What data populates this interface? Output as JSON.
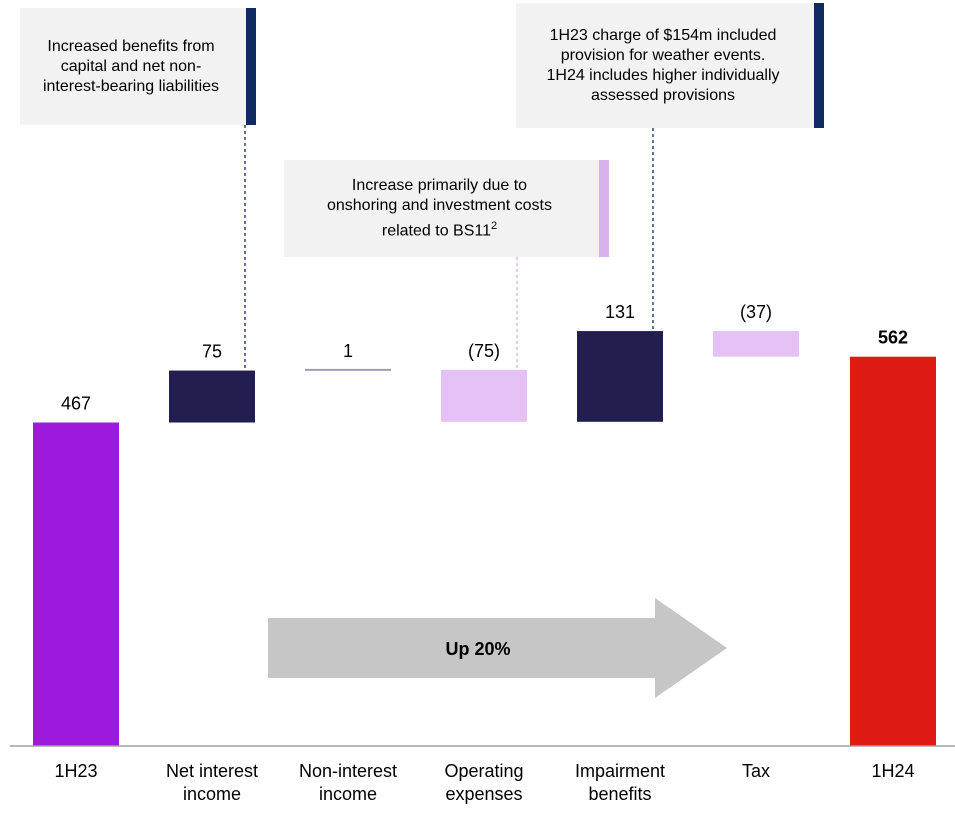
{
  "chart_data": {
    "type": "bar",
    "subtype": "waterfall",
    "categories": [
      "1H23",
      "Net interest income",
      "Non-interest income",
      "Operating expenses",
      "Impairment benefits",
      "Tax",
      "1H24"
    ],
    "category_lines": [
      [
        "1H23"
      ],
      [
        "Net interest",
        "income"
      ],
      [
        "Non-interest",
        "income"
      ],
      [
        "Operating",
        "expenses"
      ],
      [
        "Impairment",
        "benefits"
      ],
      [
        "Tax"
      ],
      [
        "1H24"
      ]
    ],
    "values": [
      467,
      75,
      1,
      -75,
      131,
      -37,
      562
    ],
    "value_labels": [
      "467",
      "75",
      "1",
      "(75)",
      "131",
      "(37)",
      "562"
    ],
    "bar_kinds": [
      "total",
      "increase",
      "increase",
      "decrease",
      "increase",
      "decrease",
      "total"
    ],
    "colors": {
      "start_total": "#9b1adb",
      "end_total": "#dd1a14",
      "increase": "#221e50",
      "decrease": "#e6c1f6",
      "neutral_line": "#9e9bb5",
      "arrow": "#c6c6c6",
      "axis": "#a0a0a0",
      "callout_bg": "#f2f2f2",
      "callout_dark_accent": "#0e2a5e",
      "callout_light_accent": "#d9b1ef"
    },
    "arrow_label": "Up 20%",
    "ylim": [
      0,
      600
    ],
    "grid": false,
    "legend": "none"
  },
  "callouts": [
    {
      "lines": [
        "Increased benefits from",
        "capital and net non-",
        "interest-bearing liabilities"
      ],
      "accent": "dark",
      "target_index": 1
    },
    {
      "lines": [
        "Increase primarily due to",
        "onshoring and investment costs"
      ],
      "last_line": "related to BS11",
      "superscript": "2",
      "accent": "light",
      "target_index": 3
    },
    {
      "lines": [
        "1H23 charge of $154m included",
        "provision for weather events.",
        "1H24 includes higher individually",
        "assessed provisions"
      ],
      "accent": "dark",
      "target_index": 4
    }
  ]
}
